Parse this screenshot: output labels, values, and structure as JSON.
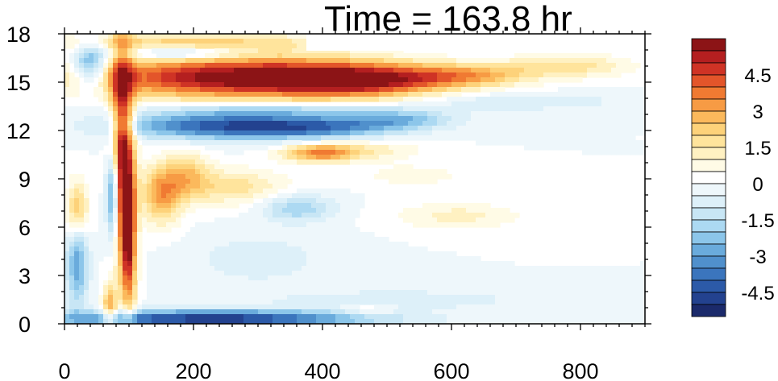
{
  "chart_data": {
    "type": "heatmap",
    "title": "Time = 163.8 hr",
    "xlabel": "",
    "ylabel": "",
    "xlim": [
      0,
      900
    ],
    "ylim": [
      0,
      18
    ],
    "x_ticks": [
      "0",
      "200",
      "400",
      "600",
      "800"
    ],
    "y_ticks": [
      "0",
      "3",
      "6",
      "9",
      "12",
      "15",
      "18"
    ],
    "colorbar": {
      "min": -5.5,
      "max": 5.5,
      "step": 0.5,
      "labels": [
        "4.5",
        "3",
        "1.5",
        "0",
        "-1.5",
        "-3",
        "-4.5"
      ],
      "colors": [
        "#1b2a6b",
        "#23428f",
        "#2c5aa8",
        "#3b75bd",
        "#5090cc",
        "#6aabdc",
        "#8cc6ea",
        "#acd9f2",
        "#c8e6f5",
        "#ddf0f9",
        "#eef7fb",
        "#ffffff",
        "#fffbe6",
        "#fff1c2",
        "#ffe49c",
        "#fdd27a",
        "#fbb95c",
        "#f79b44",
        "#f07a32",
        "#e3552a",
        "#cf3325",
        "#b41f20",
        "#8c1416"
      ]
    },
    "features": [
      {
        "x": 270,
        "y": 15.3,
        "sx": 160,
        "sy": 0.9,
        "value": 6.0
      },
      {
        "x": 460,
        "y": 15.1,
        "sx": 90,
        "sy": 0.7,
        "value": 4.0
      },
      {
        "x": 620,
        "y": 15.4,
        "sx": 70,
        "sy": 0.5,
        "value": 2.5
      },
      {
        "x": 780,
        "y": 16.0,
        "sx": 70,
        "sy": 0.5,
        "value": 1.8
      },
      {
        "x": 240,
        "y": 12.3,
        "sx": 110,
        "sy": 0.6,
        "value": -4.0
      },
      {
        "x": 400,
        "y": 12.2,
        "sx": 90,
        "sy": 0.5,
        "value": -2.8
      },
      {
        "x": 520,
        "y": 12.7,
        "sx": 60,
        "sy": 0.4,
        "value": -2.0
      },
      {
        "x": 330,
        "y": 13.3,
        "sx": 130,
        "sy": 0.3,
        "value": -1.5
      },
      {
        "x": 395,
        "y": 10.6,
        "sx": 40,
        "sy": 0.4,
        "value": 3.3
      },
      {
        "x": 470,
        "y": 10.8,
        "sx": 60,
        "sy": 0.5,
        "value": 1.2
      },
      {
        "x": 90,
        "y": 10.5,
        "sx": 12,
        "sy": 4.5,
        "value": 6.0
      },
      {
        "x": 100,
        "y": 5.0,
        "sx": 8,
        "sy": 3.0,
        "value": 4.5
      },
      {
        "x": 70,
        "y": 1.0,
        "sx": 8,
        "sy": 1.0,
        "value": 3.0
      },
      {
        "x": 75,
        "y": 8.0,
        "sx": 7,
        "sy": 2.0,
        "value": -4.5
      },
      {
        "x": 40,
        "y": 16.0,
        "sx": 18,
        "sy": 1.0,
        "value": -3.5
      },
      {
        "x": 20,
        "y": 4.0,
        "sx": 12,
        "sy": 2.0,
        "value": -3.0
      },
      {
        "x": 20,
        "y": 7.0,
        "sx": 12,
        "sy": 1.3,
        "value": 3.0
      },
      {
        "x": 230,
        "y": 0.3,
        "sx": 170,
        "sy": 0.4,
        "value": -5.0
      },
      {
        "x": 150,
        "y": 8.0,
        "sx": 22,
        "sy": 1.3,
        "value": 3.0
      },
      {
        "x": 190,
        "y": 9.3,
        "sx": 25,
        "sy": 1.0,
        "value": 2.0
      },
      {
        "x": 260,
        "y": 8.5,
        "sx": 60,
        "sy": 0.8,
        "value": 1.8
      },
      {
        "x": 200,
        "y": 17.5,
        "sx": 160,
        "sy": 0.4,
        "value": 2.0
      },
      {
        "x": 180,
        "y": 16.8,
        "sx": 60,
        "sy": 0.3,
        "value": -2.2
      },
      {
        "x": 360,
        "y": 7.2,
        "sx": 40,
        "sy": 0.6,
        "value": -2.0
      },
      {
        "x": 610,
        "y": 6.7,
        "sx": 70,
        "sy": 0.6,
        "value": 1.2
      },
      {
        "x": 540,
        "y": 9.2,
        "sx": 60,
        "sy": 0.5,
        "value": 0.8
      },
      {
        "x": 520,
        "y": 1.5,
        "sx": 130,
        "sy": 0.4,
        "value": -1.0
      },
      {
        "x": 470,
        "y": 0.9,
        "sx": 30,
        "sy": 0.3,
        "value": 1.0
      },
      {
        "x": 700,
        "y": 13.8,
        "sx": 120,
        "sy": 0.4,
        "value": -1.0
      },
      {
        "x": 300,
        "y": 4.0,
        "sx": 80,
        "sy": 1.2,
        "value": -0.8
      }
    ]
  }
}
